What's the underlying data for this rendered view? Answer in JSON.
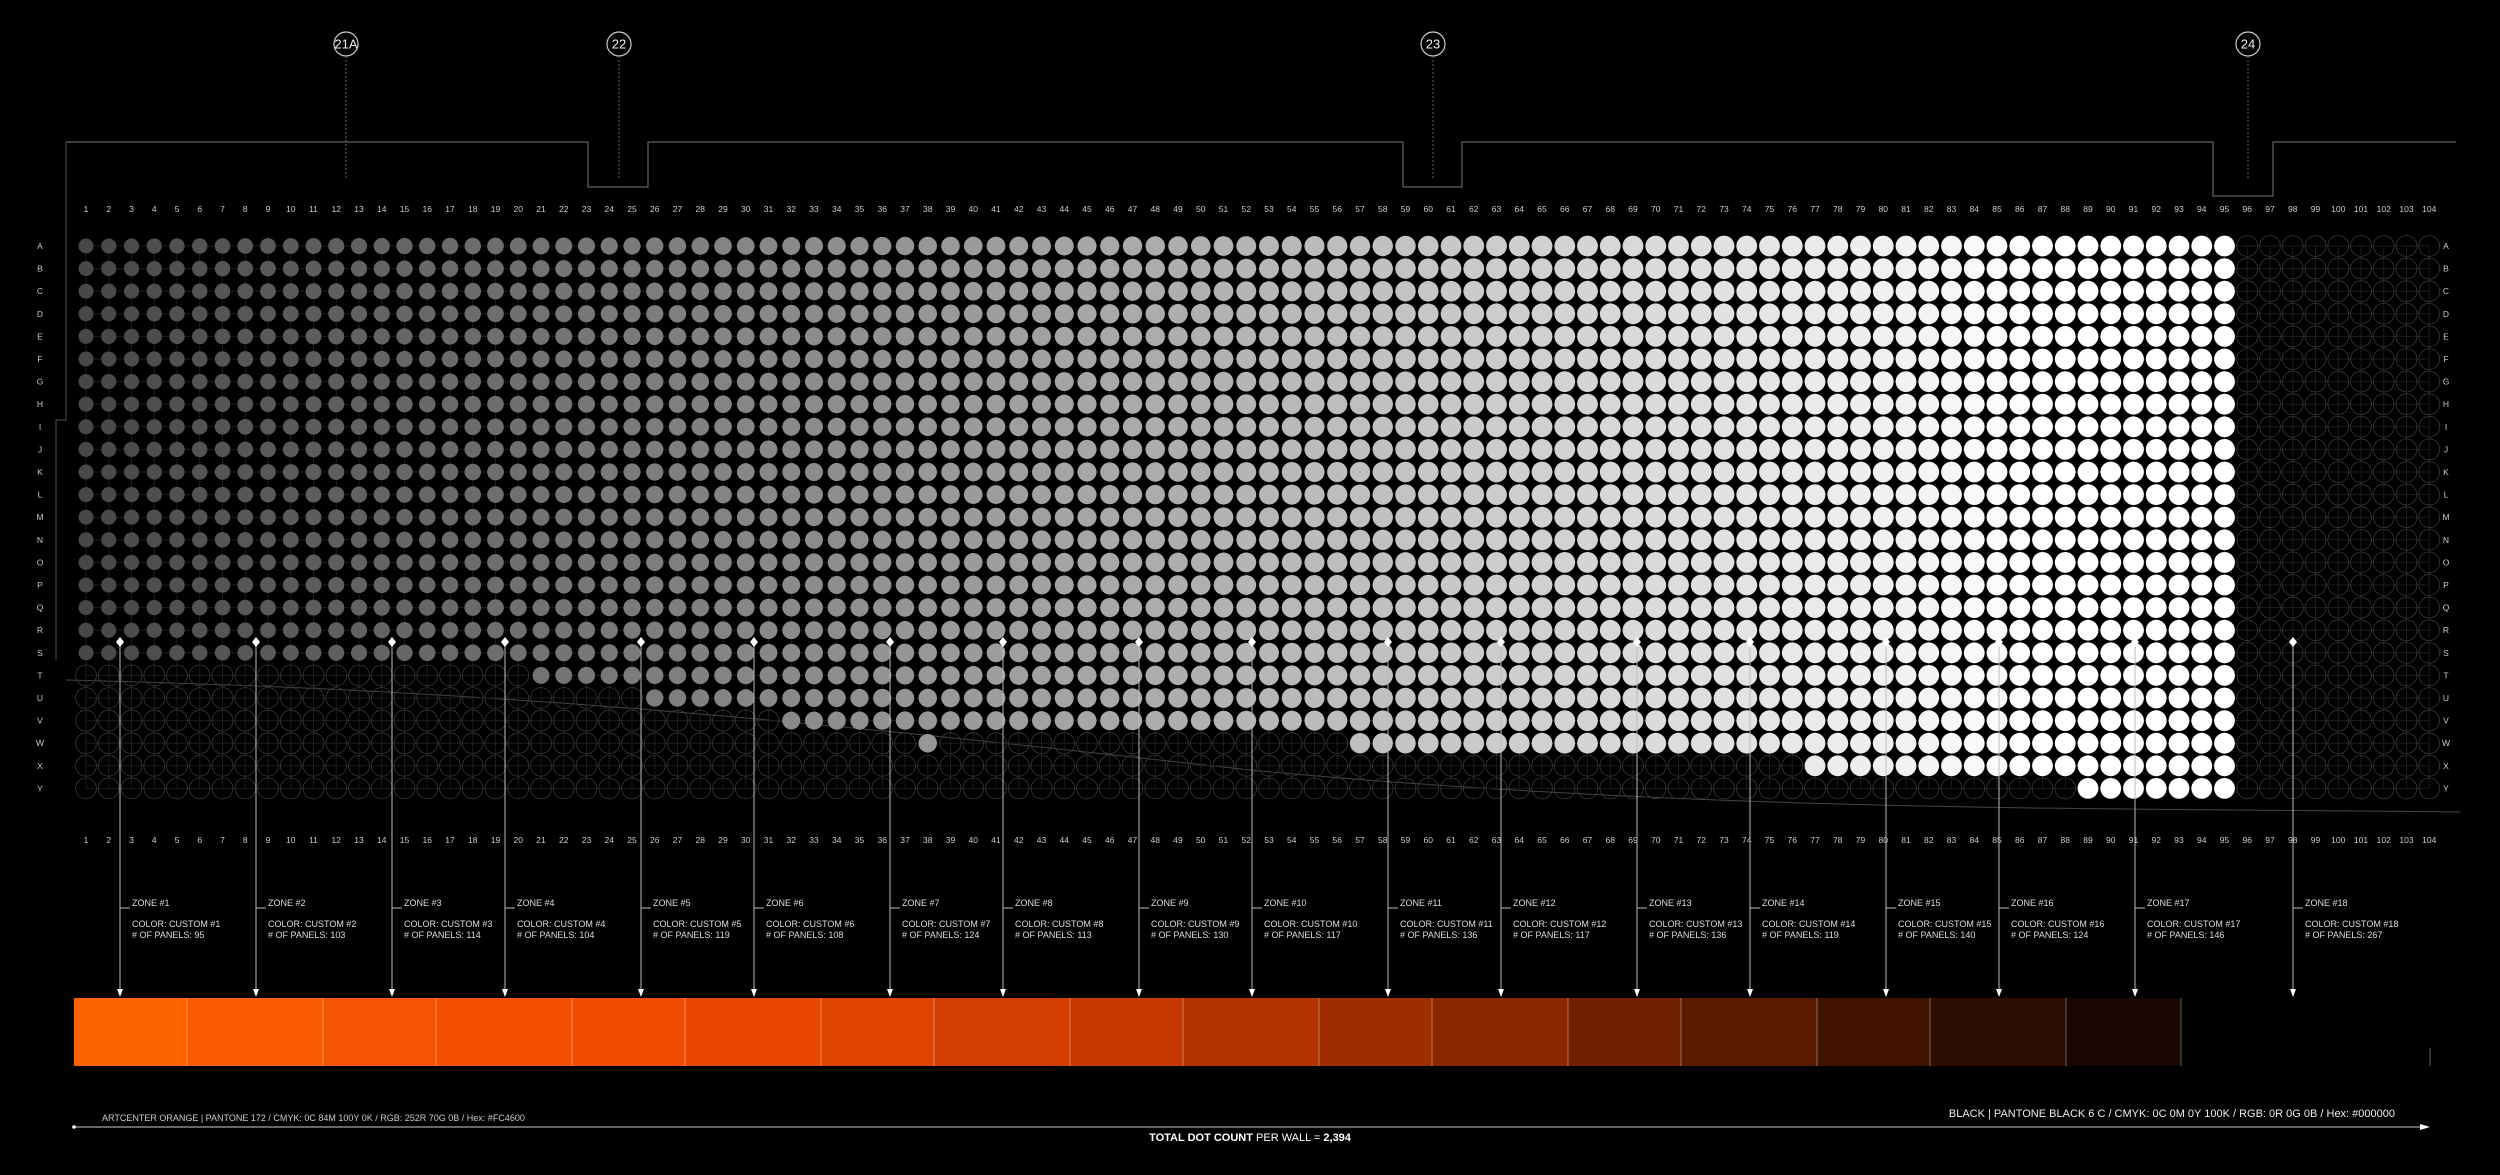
{
  "columns": 104,
  "rows": [
    "A",
    "B",
    "C",
    "D",
    "E",
    "F",
    "G",
    "H",
    "I",
    "J",
    "K",
    "L",
    "M",
    "N",
    "O",
    "P",
    "Q",
    "R",
    "S",
    "T",
    "U",
    "V",
    "W",
    "X",
    "Y"
  ],
  "markers": [
    "21A",
    "22",
    "23",
    "24"
  ],
  "zones": [
    {
      "title": "ZONE #1",
      "color": "COLOR: CUSTOM #1",
      "panels": "# OF PANELS: 95",
      "hex": "#FC6100"
    },
    {
      "title": "ZONE #2",
      "color": "COLOR: CUSTOM #2",
      "panels": "# OF PANELS: 103",
      "hex": "#F95C00"
    },
    {
      "title": "ZONE #3",
      "color": "COLOR: CUSTOM #3",
      "panels": "# OF PANELS: 114",
      "hex": "#F55500"
    },
    {
      "title": "ZONE #4",
      "color": "COLOR: CUSTOM #4",
      "panels": "# OF PANELS: 104",
      "hex": "#F25000"
    },
    {
      "title": "ZONE #5",
      "color": "COLOR: CUSTOM #5",
      "panels": "# OF PANELS: 119",
      "hex": "#F04B00"
    },
    {
      "title": "ZONE #6",
      "color": "COLOR: CUSTOM #6",
      "panels": "# OF PANELS: 108",
      "hex": "#E84700"
    },
    {
      "title": "ZONE #7",
      "color": "COLOR: CUSTOM #7",
      "panels": "# OF PANELS: 124",
      "hex": "#DE4300"
    },
    {
      "title": "ZONE #8",
      "color": "COLOR: CUSTOM #8",
      "panels": "# OF PANELS: 113",
      "hex": "#D43D00"
    },
    {
      "title": "ZONE #9",
      "color": "COLOR: CUSTOM #9",
      "panels": "# OF PANELS: 130",
      "hex": "#C73800"
    },
    {
      "title": "ZONE #10",
      "color": "COLOR: CUSTOM #10",
      "panels": "# OF PANELS: 117",
      "hex": "#B53300"
    },
    {
      "title": "ZONE #11",
      "color": "COLOR: CUSTOM #11",
      "panels": "# OF PANELS: 136",
      "hex": "#A02D00"
    },
    {
      "title": "ZONE #12",
      "color": "COLOR: CUSTOM #12",
      "panels": "# OF PANELS: 117",
      "hex": "#8A2700"
    },
    {
      "title": "ZONE #13",
      "color": "COLOR: CUSTOM #13",
      "panels": "# OF PANELS: 136",
      "hex": "#722100"
    },
    {
      "title": "ZONE #14",
      "color": "COLOR: CUSTOM #14",
      "panels": "# OF PANELS: 119",
      "hex": "#5A1A00"
    },
    {
      "title": "ZONE #15",
      "color": "COLOR: CUSTOM #15",
      "panels": "# OF PANELS: 140",
      "hex": "#421400"
    },
    {
      "title": "ZONE #16",
      "color": "COLOR: CUSTOM #16",
      "panels": "# OF PANELS: 124",
      "hex": "#2C0E04"
    },
    {
      "title": "ZONE #17",
      "color": "COLOR: CUSTOM #17",
      "panels": "# OF PANELS: 146",
      "hex": "#1A0703"
    },
    {
      "title": "ZONE #18",
      "color": "COLOR: CUSTOM #18",
      "panels": "# OF PANELS: 267",
      "hex": "#000000"
    }
  ],
  "footer": {
    "left_spec": "ARTCENTER ORANGE | PANTONE 172 / CMYK: 0C 84M 100Y 0K / RGB: 252R 70G 0B / Hex: #FC4600",
    "right_spec": "BLACK | PANTONE BLACK 6 C / CMYK: 0C 0M 0Y 100K / RGB: 0R 0G 0B / Hex: #000000",
    "total_label": "TOTAL DOT COUNT",
    "total_suffix": "PER WALL =",
    "total_value": "2,394"
  },
  "colors": {
    "background": "#000000",
    "grid_line": "#5a5a5a",
    "dot_dark": "#4a4a4a",
    "dot_light": "#ffffff",
    "brand_orange": "#FC4600"
  }
}
